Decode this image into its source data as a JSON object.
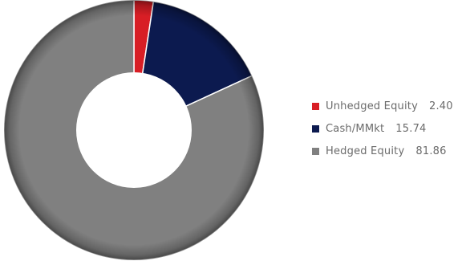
{
  "chart_data": {
    "type": "pie",
    "variant": "donut",
    "title": "",
    "legend_position": "right",
    "series": [
      {
        "name": "Unhedged Equity",
        "value": 2.4,
        "label": "2.40",
        "color": "#d81e25"
      },
      {
        "name": "Cash/MMkt",
        "value": 15.74,
        "label": "15.74",
        "color": "#0c1a4f"
      },
      {
        "name": "Hedged Equity",
        "value": 81.86,
        "label": "81.86",
        "color": "#808080"
      }
    ]
  }
}
